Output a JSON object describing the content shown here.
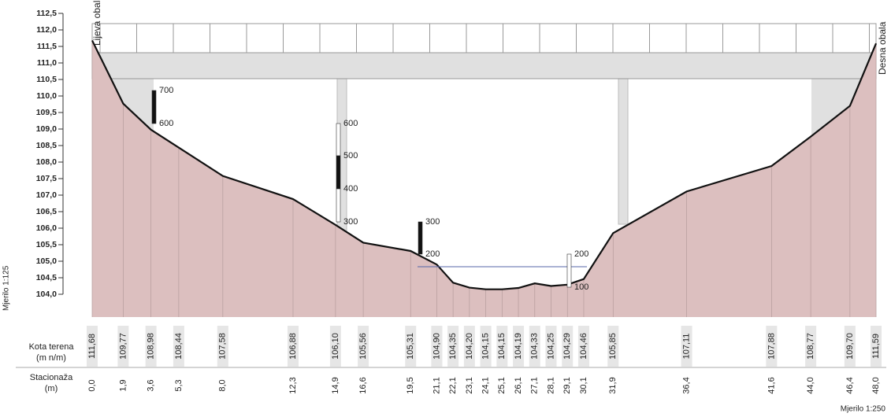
{
  "header": {
    "left_bank": "Lijeva obala",
    "right_bank": "Desna obala",
    "vertical_scale": "Mjerilo 1:125",
    "horizontal_scale": "Mjerilo 1:250"
  },
  "rows": {
    "elevation": "Kota terena",
    "elevation_unit": "(m n/m)",
    "station": "Stacionaža",
    "station_unit": "(m)"
  },
  "yticks": [
    {
      "value": 104.0,
      "label": "104,0"
    },
    {
      "value": 104.5,
      "label": "104,5"
    },
    {
      "value": 105.0,
      "label": "105,0"
    },
    {
      "value": 105.5,
      "label": "105,5"
    },
    {
      "value": 106.0,
      "label": "106,0"
    },
    {
      "value": 106.5,
      "label": "106,5"
    },
    {
      "value": 107.0,
      "label": "107,0"
    },
    {
      "value": 107.5,
      "label": "107,5"
    },
    {
      "value": 108.0,
      "label": "108,0"
    },
    {
      "value": 108.5,
      "label": "108,5"
    },
    {
      "value": 109.0,
      "label": "109,0"
    },
    {
      "value": 109.5,
      "label": "109,5"
    },
    {
      "value": 110.0,
      "label": "110,0"
    },
    {
      "value": 110.5,
      "label": "110,5"
    },
    {
      "value": 111.0,
      "label": "111,0"
    },
    {
      "value": 111.5,
      "label": "111,5"
    },
    {
      "value": 112.0,
      "label": "112,0"
    },
    {
      "value": 112.5,
      "label": "112,5"
    }
  ],
  "points": [
    {
      "station": {
        "value": 0.0,
        "label": "0,0"
      },
      "elevation": {
        "value": 111.68,
        "label": "111,68"
      }
    },
    {
      "station": {
        "value": 1.9,
        "label": "1,9"
      },
      "elevation": {
        "value": 109.77,
        "label": "109,77"
      }
    },
    {
      "station": {
        "value": 3.6,
        "label": "3,6"
      },
      "elevation": {
        "value": 108.98,
        "label": "108,98"
      }
    },
    {
      "station": {
        "value": 5.3,
        "label": "5,3"
      },
      "elevation": {
        "value": 108.44,
        "label": "108,44"
      }
    },
    {
      "station": {
        "value": 8.0,
        "label": "8,0"
      },
      "elevation": {
        "value": 107.58,
        "label": "107,58"
      }
    },
    {
      "station": {
        "value": 12.3,
        "label": "12,3"
      },
      "elevation": {
        "value": 106.88,
        "label": "106,88"
      }
    },
    {
      "station": {
        "value": 14.9,
        "label": "14,9"
      },
      "elevation": {
        "value": 106.1,
        "label": "106,10"
      }
    },
    {
      "station": {
        "value": 16.6,
        "label": "16,6"
      },
      "elevation": {
        "value": 105.56,
        "label": "105,56"
      }
    },
    {
      "station": {
        "value": 19.5,
        "label": "19,5"
      },
      "elevation": {
        "value": 105.31,
        "label": "105,31"
      }
    },
    {
      "station": {
        "value": 21.1,
        "label": "21,1"
      },
      "elevation": {
        "value": 104.9,
        "label": "104,90"
      }
    },
    {
      "station": {
        "value": 22.1,
        "label": "22,1"
      },
      "elevation": {
        "value": 104.35,
        "label": "104,35"
      }
    },
    {
      "station": {
        "value": 23.1,
        "label": "23,1"
      },
      "elevation": {
        "value": 104.2,
        "label": "104,20"
      }
    },
    {
      "station": {
        "value": 24.1,
        "label": "24,1"
      },
      "elevation": {
        "value": 104.15,
        "label": "104,15"
      }
    },
    {
      "station": {
        "value": 25.1,
        "label": "25,1"
      },
      "elevation": {
        "value": 104.15,
        "label": "104,15"
      }
    },
    {
      "station": {
        "value": 26.1,
        "label": "26,1"
      },
      "elevation": {
        "value": 104.19,
        "label": "104,19"
      }
    },
    {
      "station": {
        "value": 27.1,
        "label": "27,1"
      },
      "elevation": {
        "value": 104.33,
        "label": "104,33"
      }
    },
    {
      "station": {
        "value": 28.1,
        "label": "28,1"
      },
      "elevation": {
        "value": 104.25,
        "label": "104,25"
      }
    },
    {
      "station": {
        "value": 29.1,
        "label": "29,1"
      },
      "elevation": {
        "value": 104.29,
        "label": "104,29"
      }
    },
    {
      "station": {
        "value": 30.1,
        "label": "30,1"
      },
      "elevation": {
        "value": 104.46,
        "label": "104,46"
      }
    },
    {
      "station": {
        "value": 31.9,
        "label": "31,9"
      },
      "elevation": {
        "value": 105.85,
        "label": "105,85"
      }
    },
    {
      "station": {
        "value": 36.4,
        "label": "36,4"
      },
      "elevation": {
        "value": 107.11,
        "label": "107,11"
      }
    },
    {
      "station": {
        "value": 41.6,
        "label": "41,6"
      },
      "elevation": {
        "value": 107.88,
        "label": "107,88"
      }
    },
    {
      "station": {
        "value": 44.0,
        "label": "44,0"
      },
      "elevation": {
        "value": 108.77,
        "label": "108,77"
      }
    },
    {
      "station": {
        "value": 46.4,
        "label": "46,4"
      },
      "elevation": {
        "value": 109.7,
        "label": "109,70"
      }
    },
    {
      "station": {
        "value": 48.0,
        "label": "48,0"
      },
      "elevation": {
        "value": 111.59,
        "label": "111,59"
      }
    }
  ],
  "gauges": [
    {
      "labels": [
        "700",
        "600"
      ]
    },
    {
      "labels": [
        "600",
        "500",
        "400",
        "300"
      ]
    },
    {
      "labels": [
        "300",
        "200"
      ]
    },
    {
      "labels": [
        "200",
        "100"
      ]
    }
  ]
}
